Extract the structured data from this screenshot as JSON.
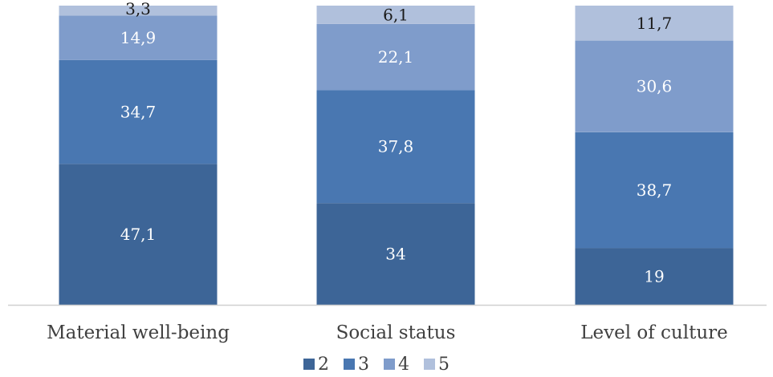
{
  "chart_data": {
    "type": "bar",
    "stacked": true,
    "categories": [
      "Material well-being",
      "Social status",
      "Level of culture"
    ],
    "series": [
      {
        "name": "2",
        "values": [
          47.1,
          34,
          19
        ],
        "labels": [
          "47,1",
          "34",
          "19"
        ],
        "color": "#3d6597"
      },
      {
        "name": "3",
        "values": [
          34.7,
          37.8,
          38.7
        ],
        "labels": [
          "34,7",
          "37,8",
          "38,7"
        ],
        "color": "#4977b1"
      },
      {
        "name": "4",
        "values": [
          14.9,
          22.1,
          30.6
        ],
        "labels": [
          "14,9",
          "22,1",
          "30,6"
        ],
        "color": "#7f9ccb"
      },
      {
        "name": "5",
        "values": [
          3.3,
          6.1,
          11.7
        ],
        "labels": [
          "3,3",
          "6,1",
          "11,7"
        ],
        "color": "#b0c0dc"
      }
    ],
    "ylim": [
      0,
      100
    ],
    "grid": false,
    "legend_position": "bottom",
    "axis_color": "#d0d0d0",
    "label_colors": {
      "light": "#ffffff",
      "dark": "#1a1a1a"
    }
  }
}
